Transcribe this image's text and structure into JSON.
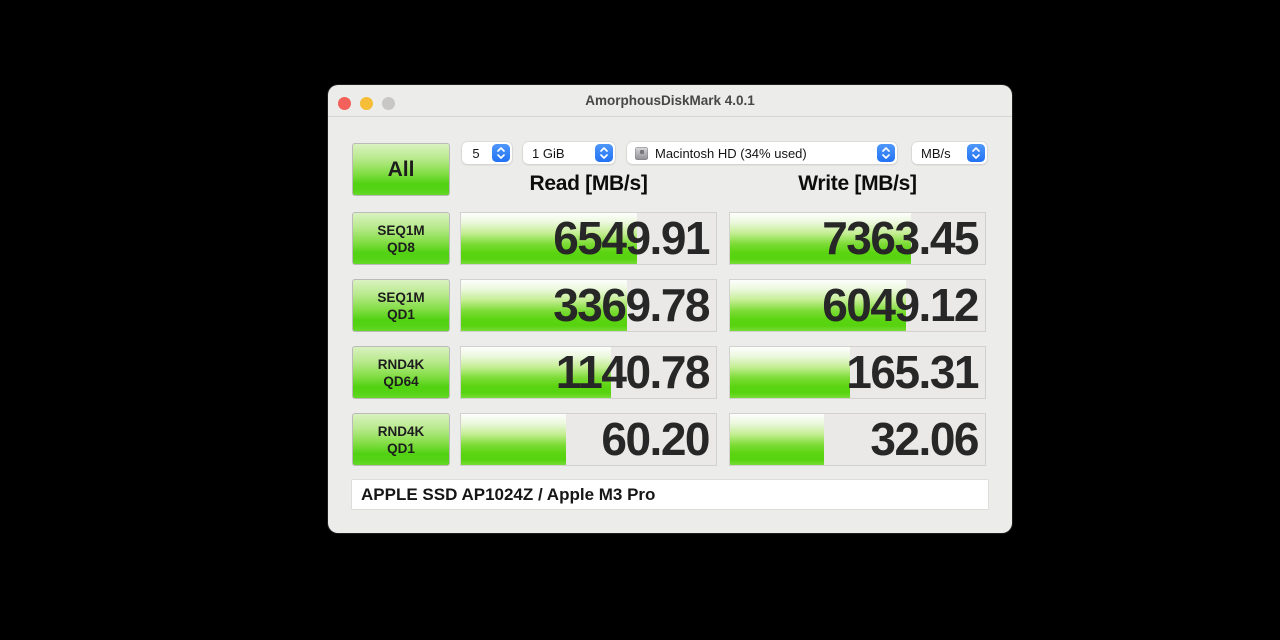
{
  "window": {
    "title": "AmorphousDiskMark 4.0.1",
    "traffic_lights": [
      "close",
      "minimize",
      "zoom-disabled"
    ]
  },
  "toolbar": {
    "all_button_label": "All",
    "test_count": "5",
    "test_size": "1 GiB",
    "target_volume": "Macintosh HD (34% used)",
    "unit": "MB/s"
  },
  "columns": {
    "read_header": "Read [MB/s]",
    "write_header": "Write [MB/s]"
  },
  "rows": [
    {
      "label_line1": "SEQ1M",
      "label_line2": "QD8",
      "read": "6549.91",
      "write": "7363.45",
      "read_fill": 69,
      "write_fill": 71
    },
    {
      "label_line1": "SEQ1M",
      "label_line2": "QD1",
      "read": "3369.78",
      "write": "6049.12",
      "read_fill": 65,
      "write_fill": 69
    },
    {
      "label_line1": "RND4K",
      "label_line2": "QD64",
      "read": "1140.78",
      "write": "165.31",
      "read_fill": 59,
      "write_fill": 47
    },
    {
      "label_line1": "RND4K",
      "label_line2": "QD1",
      "read": "60.20",
      "write": "32.06",
      "read_fill": 41,
      "write_fill": 37
    }
  ],
  "footer": {
    "device": "APPLE SSD AP1024Z / Apple M3 Pro"
  },
  "colors": {
    "accent_green": "#55d316",
    "popup_blue": "#2272f4",
    "window_gray": "#ececea",
    "close_red": "#f4605a",
    "minimize_yellow": "#f6bd36"
  }
}
